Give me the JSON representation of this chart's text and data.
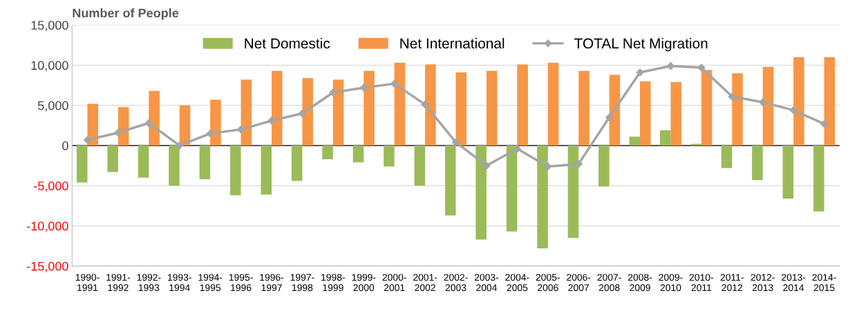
{
  "chart_data": {
    "type": "bar",
    "ylabel": "Number of People",
    "categories": [
      "1990-\n1991",
      "1991-\n1992",
      "1992-\n1993",
      "1993-\n1994",
      "1994-\n1995",
      "1995-\n1996",
      "1996-\n1997",
      "1997-\n1998",
      "1998-\n1999",
      "1999-\n2000",
      "2000-\n2001",
      "2001-\n2002",
      "2002-\n2003",
      "2003-\n2004",
      "2004-\n2005",
      "2005-\n2006",
      "2006-\n2007",
      "2007-\n2008",
      "2008-\n2009",
      "2009-\n2010",
      "2010-\n2011",
      "2011-\n2012",
      "2012-\n2013",
      "2013-\n2014",
      "2014-\n2015"
    ],
    "series": [
      {
        "name": "Net Domestic",
        "color": "#9bbb59",
        "values": [
          -4600,
          -3300,
          -4000,
          -5000,
          -4200,
          -6200,
          -6100,
          -4400,
          -1700,
          -2100,
          -2600,
          -5000,
          -8700,
          -11700,
          -10700,
          -12800,
          -11500,
          -5100,
          1100,
          1900,
          200,
          -2800,
          -4300,
          -6600,
          -8200
        ]
      },
      {
        "name": "Net International",
        "color": "#f79646",
        "values": [
          5200,
          4800,
          6800,
          5000,
          5700,
          8200,
          9300,
          8400,
          8200,
          9300,
          10300,
          10100,
          9100,
          9300,
          10100,
          10300,
          9300,
          8800,
          8000,
          7900,
          9400,
          9000,
          9800,
          11000,
          11000
        ]
      },
      {
        "name": "TOTAL Net Migration",
        "type": "line",
        "color": "#a5a5a5",
        "marker": "diamond",
        "values": [
          700,
          1600,
          2800,
          0,
          1500,
          2000,
          3100,
          4000,
          6600,
          7200,
          7700,
          5100,
          400,
          -2500,
          -400,
          -2600,
          -2300,
          3500,
          9100,
          9900,
          9700,
          6100,
          5400,
          4400,
          2700
        ]
      }
    ],
    "ylim": [
      -15000,
      15000
    ],
    "yticks": [
      {
        "value": -15000,
        "label": "-15,000"
      },
      {
        "value": -10000,
        "label": "-10,000"
      },
      {
        "value": -5000,
        "label": "-5,000"
      },
      0,
      {
        "value": 5000,
        "label": "5,000"
      },
      {
        "value": 10000,
        "label": "10,000"
      },
      {
        "value": 15000,
        "label": "15,000"
      }
    ],
    "grid": "y",
    "legend": "top"
  }
}
